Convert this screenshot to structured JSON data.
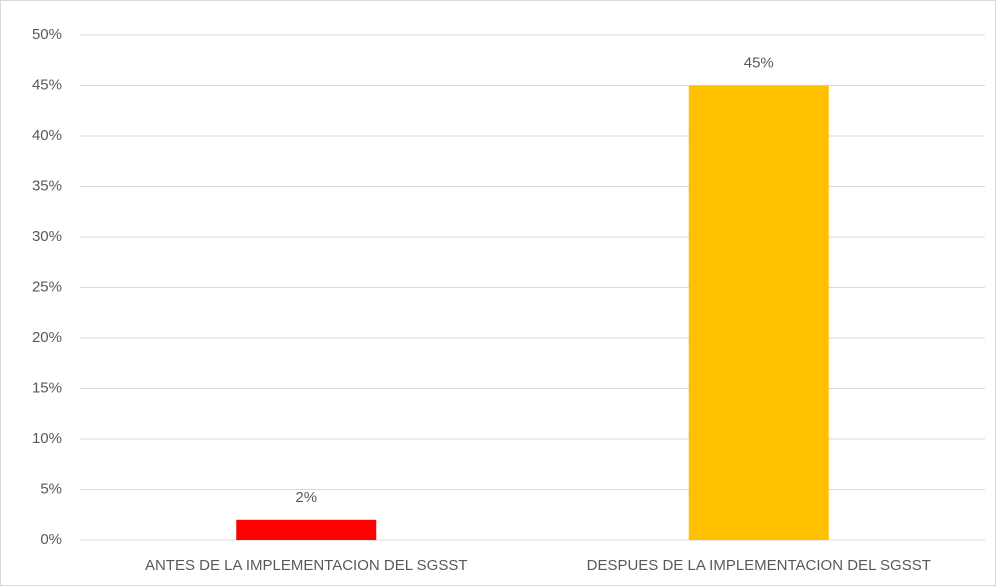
{
  "chart_data": {
    "type": "bar",
    "categories": [
      "ANTES DE LA IMPLEMENTACION DEL SGSST",
      "DESPUES DE LA IMPLEMENTACION DEL SGSST"
    ],
    "values": [
      2,
      45
    ],
    "value_labels": [
      "2%",
      "45%"
    ],
    "colors": [
      "#ff0000",
      "#ffc000"
    ],
    "ylim": [
      0,
      50
    ],
    "yticks": [
      {
        "value": 0,
        "label": "0%"
      },
      {
        "value": 5,
        "label": "5%"
      },
      {
        "value": 10,
        "label": "10%"
      },
      {
        "value": 15,
        "label": "15%"
      },
      {
        "value": 20,
        "label": "20%"
      },
      {
        "value": 25,
        "label": "25%"
      },
      {
        "value": 30,
        "label": "30%"
      },
      {
        "value": 35,
        "label": "35%"
      },
      {
        "value": 40,
        "label": "40%"
      },
      {
        "value": 45,
        "label": "45%"
      },
      {
        "value": 50,
        "label": "50%"
      }
    ],
    "grid": true
  }
}
